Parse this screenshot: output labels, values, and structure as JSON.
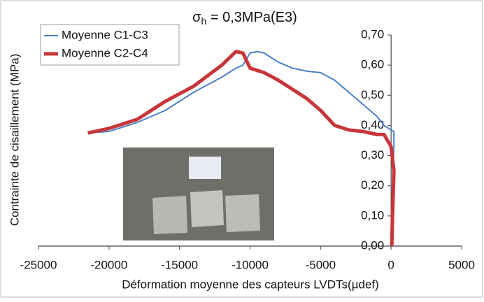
{
  "chart_data": {
    "type": "line",
    "title_symbol": "σ",
    "title_subscript": "h",
    "title_rest": " = 0,3MPa(E3)",
    "x_label": "Déformation moyenne des capteurs LVDTs(µdef)",
    "y_label": "Contrainte de cisaillement (MPa)",
    "xlim": [
      -25000,
      5000
    ],
    "xticks": [
      -25000,
      -20000,
      -15000,
      -10000,
      -5000,
      0,
      5000
    ],
    "ylim": [
      0,
      0.7
    ],
    "yticks": [
      {
        "value": 0,
        "label": "0,00"
      },
      {
        "value": 0.1,
        "label": "0,10"
      },
      {
        "value": 0.2,
        "label": "0,20"
      },
      {
        "value": 0.3,
        "label": "0,30"
      },
      {
        "value": 0.4,
        "label": "0,40"
      },
      {
        "value": 0.5,
        "label": "0,50"
      },
      {
        "value": 0.6,
        "label": "0,60"
      },
      {
        "value": 0.7,
        "label": "0,70"
      }
    ],
    "legend": "top-left",
    "series": [
      {
        "name": "Moyenne C1-C3",
        "color": "#4a80c8",
        "width": 2,
        "x": [
          -21500,
          -20000,
          -18000,
          -16000,
          -14000,
          -12000,
          -11000,
          -10500,
          -10000,
          -9500,
          -9000,
          -8000,
          -7000,
          -6000,
          -5000,
          -4000,
          -3000,
          -2000,
          -1000,
          -500,
          0,
          200,
          200,
          150
        ],
        "values": [
          0.375,
          0.38,
          0.41,
          0.45,
          0.51,
          0.56,
          0.59,
          0.6,
          0.64,
          0.645,
          0.64,
          0.61,
          0.59,
          0.58,
          0.575,
          0.55,
          0.51,
          0.47,
          0.43,
          0.4,
          0.385,
          0.38,
          0.33,
          0.28
        ]
      },
      {
        "name": "Moyenne C2-C4",
        "color": "#c8363a",
        "width": 5,
        "x": [
          -21500,
          -20000,
          -18000,
          -16000,
          -14000,
          -12000,
          -11000,
          -10500,
          -10000,
          -9000,
          -8000,
          -7000,
          -6000,
          -5000,
          -4000,
          -3000,
          -2000,
          -1000,
          -500,
          0,
          200,
          100,
          50
        ],
        "values": [
          0.375,
          0.39,
          0.42,
          0.48,
          0.53,
          0.6,
          0.645,
          0.64,
          0.59,
          0.575,
          0.55,
          0.52,
          0.49,
          0.45,
          0.4,
          0.385,
          0.38,
          0.37,
          0.37,
          0.33,
          0.25,
          0.1,
          0
        ]
      }
    ]
  }
}
